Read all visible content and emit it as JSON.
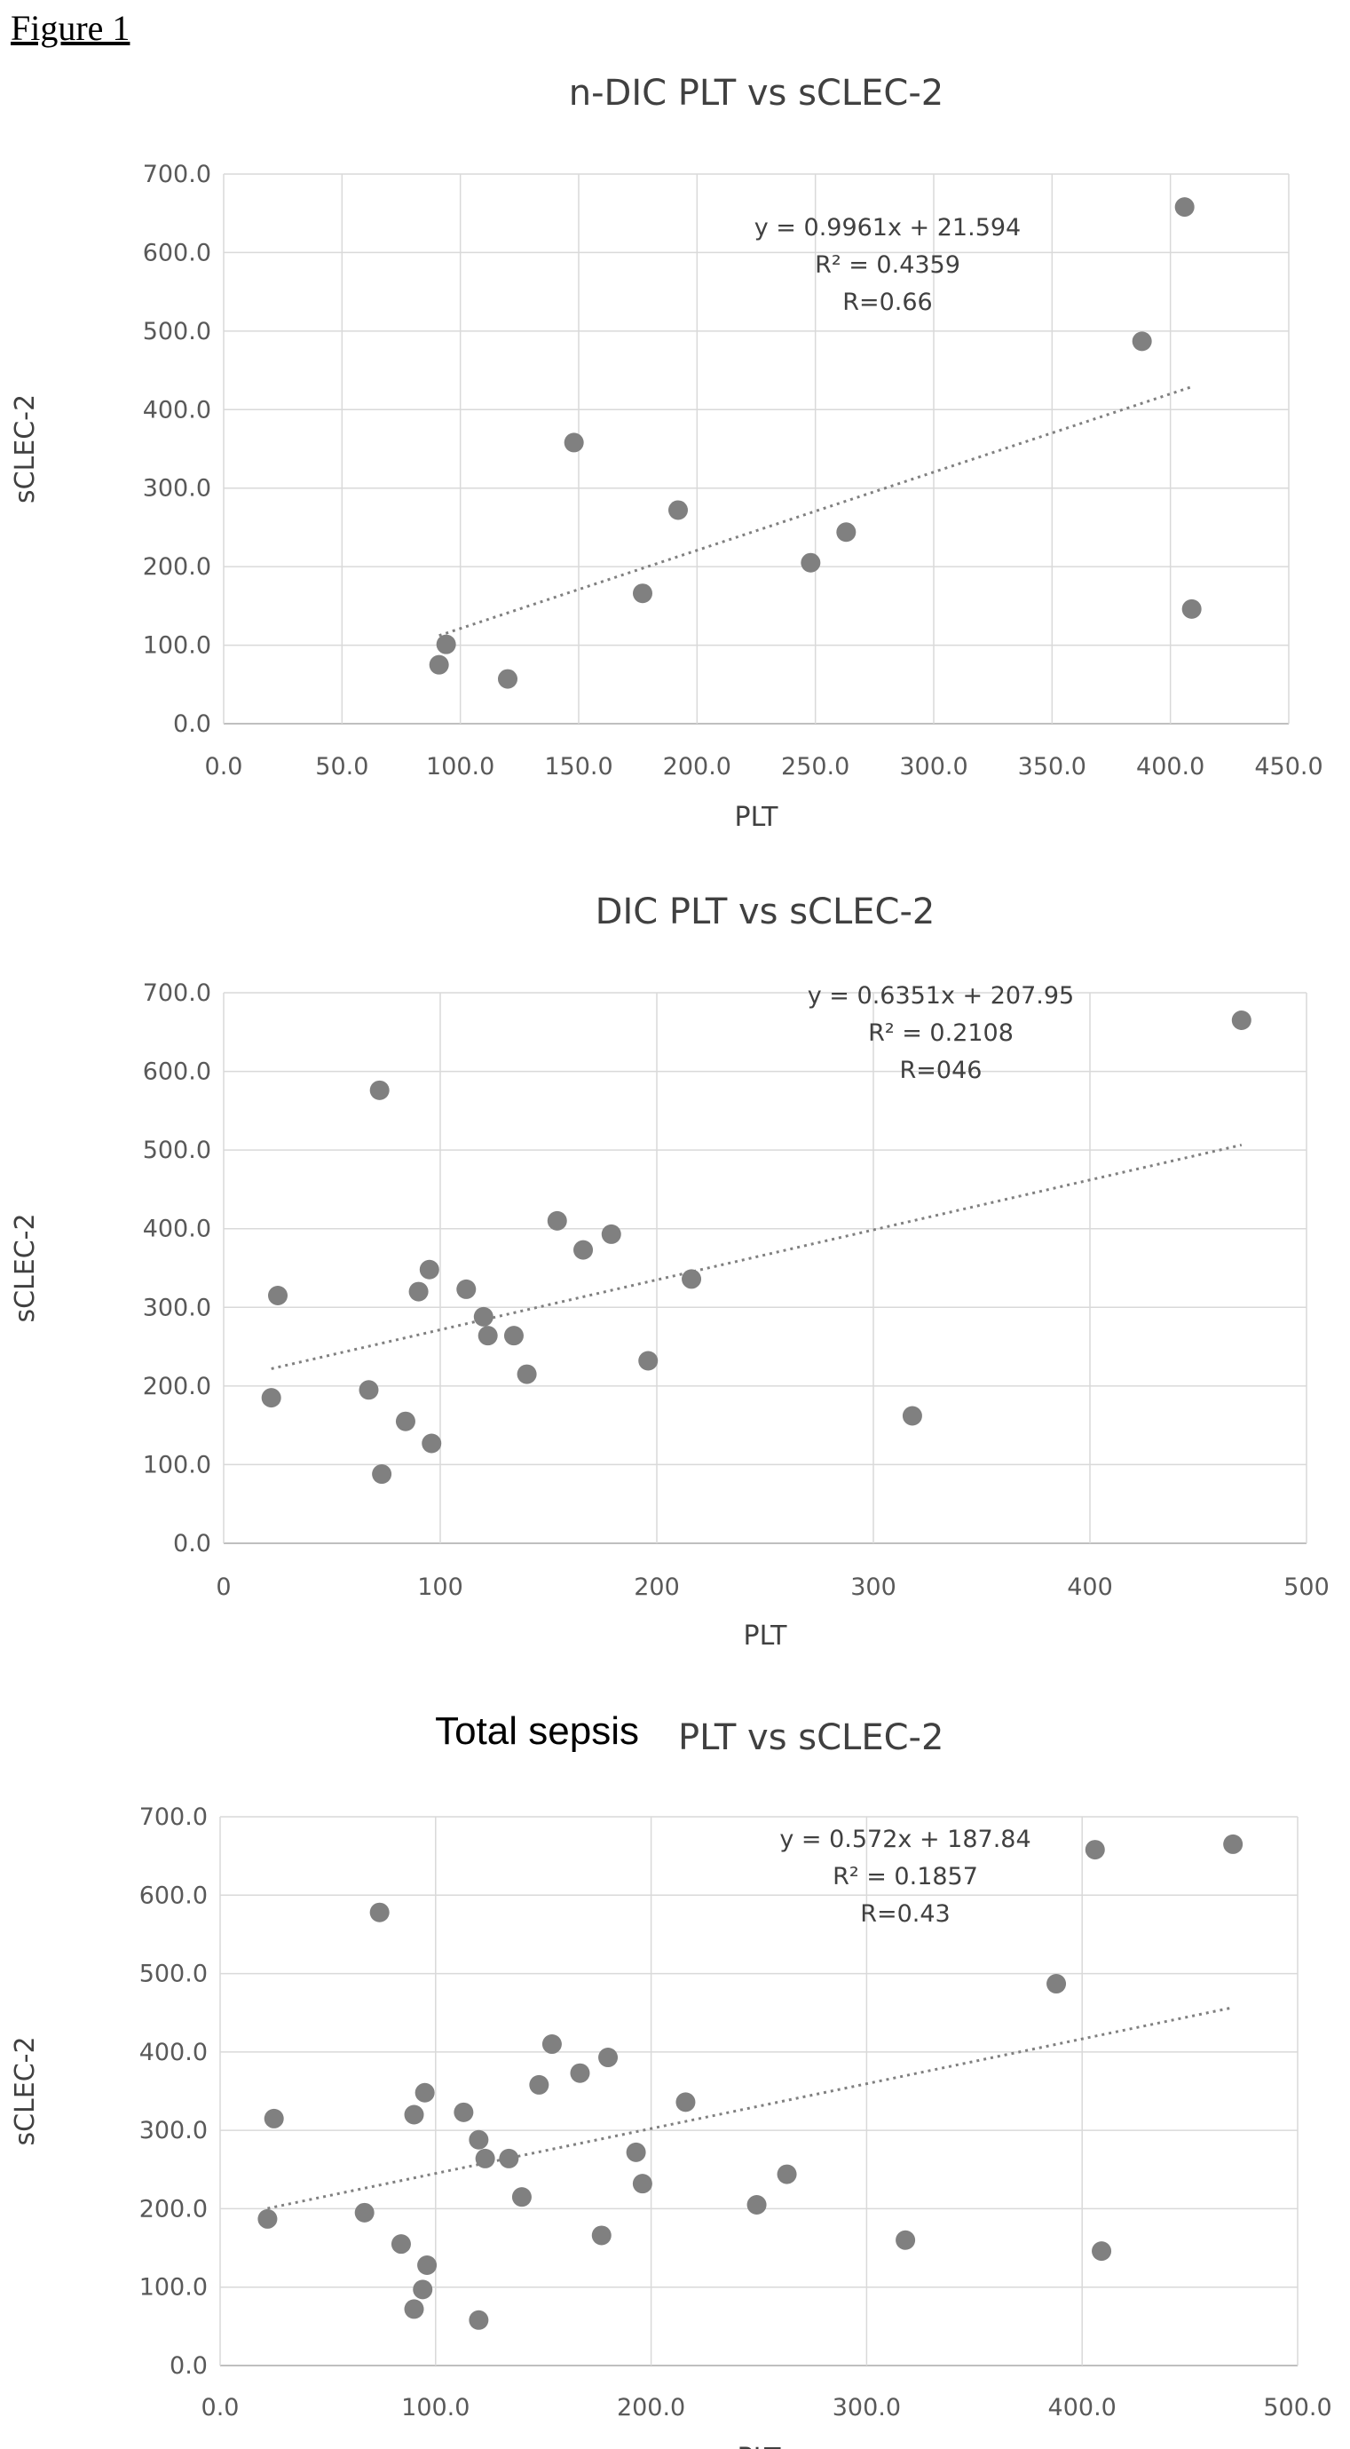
{
  "figure_label": "Figure 1",
  "chart_data": [
    {
      "type": "scatter",
      "title": "n-DIC PLT vs sCLEC-2",
      "title_parts": [],
      "xlabel": "PLT",
      "ylabel": "sCLEC-2",
      "xlim": [
        0,
        450
      ],
      "ylim": [
        0,
        700
      ],
      "x_ticks": [
        "0.0",
        "50.0",
        "100.0",
        "150.0",
        "200.0",
        "250.0",
        "300.0",
        "350.0",
        "400.0",
        "450.0"
      ],
      "y_ticks": [
        "0.0",
        "100.0",
        "200.0",
        "300.0",
        "400.0",
        "500.0",
        "600.0",
        "700.0"
      ],
      "grid": true,
      "series": [
        {
          "points": [
            [
              91,
              75
            ],
            [
              94,
              101
            ],
            [
              120,
              57
            ],
            [
              148,
              358
            ],
            [
              177,
              166
            ],
            [
              192,
              272
            ],
            [
              248,
              205
            ],
            [
              263,
              244
            ],
            [
              388,
              487
            ],
            [
              406,
              658
            ],
            [
              409,
              146
            ]
          ]
        }
      ],
      "trendline": {
        "x_range": [
          91,
          409
        ],
        "slope": 0.9961,
        "intercept": 21.594
      },
      "annotations": [
        "y = 0.9961x + 21.594",
        "R² = 0.4359",
        "R=0.66"
      ],
      "color": "#808080"
    },
    {
      "type": "scatter",
      "title": "DIC PLT vs sCLEC-2",
      "title_parts": [],
      "xlabel": "PLT",
      "ylabel": "sCLEC-2",
      "xlim": [
        0,
        500
      ],
      "ylim": [
        0,
        700
      ],
      "x_ticks": [
        "0",
        "100",
        "200",
        "300",
        "400",
        "500"
      ],
      "y_ticks": [
        "0.0",
        "100.0",
        "200.0",
        "300.0",
        "400.0",
        "500.0",
        "600.0",
        "700.0"
      ],
      "grid": true,
      "series": [
        {
          "points": [
            [
              22,
              185
            ],
            [
              25,
              315
            ],
            [
              67,
              195
            ],
            [
              72,
              576
            ],
            [
              73,
              88
            ],
            [
              84,
              155
            ],
            [
              90,
              320
            ],
            [
              95,
              348
            ],
            [
              96,
              127
            ],
            [
              112,
              323
            ],
            [
              120,
              288
            ],
            [
              122,
              264
            ],
            [
              134,
              264
            ],
            [
              140,
              215
            ],
            [
              154,
              410
            ],
            [
              166,
              373
            ],
            [
              179,
              393
            ],
            [
              196,
              232
            ],
            [
              216,
              336
            ],
            [
              318,
              162
            ],
            [
              470,
              665
            ]
          ]
        }
      ],
      "trendline": {
        "x_range": [
          22,
          470
        ],
        "slope": 0.6351,
        "intercept": 207.95
      },
      "annotations": [
        "y = 0.6351x + 207.95",
        "R² = 0.2108",
        "R=046"
      ],
      "color": "#808080"
    },
    {
      "type": "scatter",
      "title": "",
      "title_parts": [
        "Total sepsis",
        "PLT vs sCLEC-2"
      ],
      "xlabel": "PLT",
      "ylabel": "sCLEC-2",
      "xlim": [
        0,
        500
      ],
      "ylim": [
        0,
        700
      ],
      "x_ticks": [
        "0.0",
        "100.0",
        "200.0",
        "300.0",
        "400.0",
        "500.0"
      ],
      "y_ticks": [
        "0.0",
        "100.0",
        "200.0",
        "300.0",
        "400.0",
        "500.0",
        "600.0",
        "700.0"
      ],
      "grid": true,
      "series": [
        {
          "points": [
            [
              22,
              187
            ],
            [
              25,
              315
            ],
            [
              67,
              195
            ],
            [
              74,
              578
            ],
            [
              84,
              155
            ],
            [
              90,
              320
            ],
            [
              90,
              72
            ],
            [
              94,
              97
            ],
            [
              95,
              348
            ],
            [
              96,
              128
            ],
            [
              113,
              323
            ],
            [
              120,
              58
            ],
            [
              120,
              288
            ],
            [
              123,
              264
            ],
            [
              134,
              264
            ],
            [
              140,
              215
            ],
            [
              148,
              358
            ],
            [
              154,
              410
            ],
            [
              167,
              373
            ],
            [
              177,
              166
            ],
            [
              180,
              393
            ],
            [
              193,
              272
            ],
            [
              196,
              232
            ],
            [
              216,
              336
            ],
            [
              249,
              205
            ],
            [
              263,
              244
            ],
            [
              318,
              160
            ],
            [
              388,
              487
            ],
            [
              406,
              658
            ],
            [
              409,
              146
            ],
            [
              470,
              665
            ]
          ]
        }
      ],
      "trendline": {
        "x_range": [
          22,
          470
        ],
        "slope": 0.572,
        "intercept": 187.84
      },
      "annotations": [
        "y = 0.572x + 187.84",
        "R² = 0.1857",
        "R=0.43"
      ],
      "color": "#808080"
    }
  ]
}
